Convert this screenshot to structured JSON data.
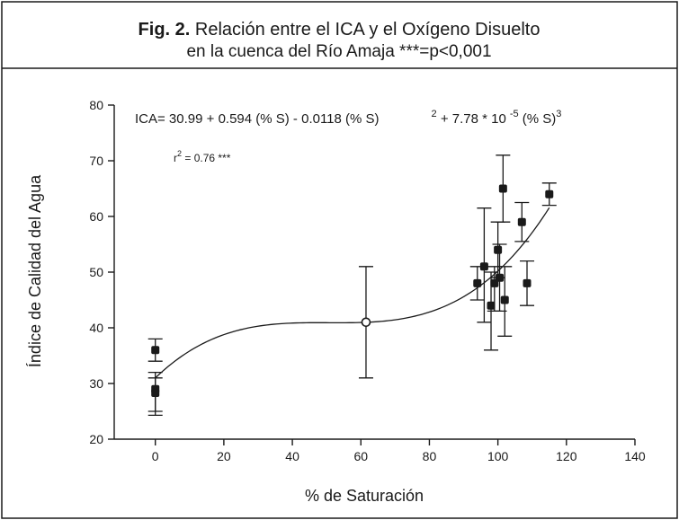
{
  "caption": {
    "fig_label": "Fig. 2.",
    "line1": "Relación entre el ICA y el Oxígeno Disuelto",
    "line2": "en la cuenca del Río Amaja ***=p<0,001"
  },
  "equation": {
    "part1": "ICA= 30.99 + 0.594 (% S) - 0.0118 (% S)",
    "exp1": "2",
    "part2": " + 7.78 * 10",
    "exp2": "-5",
    "part3": " (% S)",
    "exp3": "3"
  },
  "r2": {
    "label": "r",
    "exp": "2",
    "value": " = 0.76 ***"
  },
  "chart_data": {
    "type": "scatter",
    "xlabel": "% de Saturación",
    "ylabel": "Índice de Calidad del Agua",
    "xlim": [
      -12,
      140
    ],
    "ylim": [
      20,
      80
    ],
    "xticks": [
      0,
      20,
      40,
      60,
      80,
      100,
      120,
      140
    ],
    "yticks": [
      20,
      30,
      40,
      50,
      60,
      70,
      80
    ],
    "grid": false,
    "points": [
      {
        "x": 0,
        "y": 36,
        "lo": 34,
        "hi": 38,
        "marker": "filled"
      },
      {
        "x": 0,
        "y": 29,
        "lo": 25,
        "hi": 32,
        "marker": "filled"
      },
      {
        "x": 0,
        "y": 28.3,
        "lo": 24.3,
        "hi": 31,
        "marker": "filled"
      },
      {
        "x": 61.5,
        "y": 41,
        "lo": 31,
        "hi": 51,
        "marker": "open"
      },
      {
        "x": 94,
        "y": 48,
        "lo": 45,
        "hi": 51,
        "marker": "filled"
      },
      {
        "x": 96,
        "y": 51,
        "lo": 41,
        "hi": 61.5,
        "marker": "filled"
      },
      {
        "x": 98,
        "y": 44,
        "lo": 36,
        "hi": 50,
        "marker": "filled"
      },
      {
        "x": 99,
        "y": 48,
        "lo": 43,
        "hi": 51,
        "marker": "filled"
      },
      {
        "x": 100,
        "y": 54,
        "lo": 49,
        "hi": 59,
        "marker": "filled"
      },
      {
        "x": 100.5,
        "y": 49,
        "lo": 43,
        "hi": 55,
        "marker": "filled"
      },
      {
        "x": 101.5,
        "y": 65,
        "lo": 59,
        "hi": 71,
        "marker": "filled"
      },
      {
        "x": 102,
        "y": 45,
        "lo": 38.5,
        "hi": 51,
        "marker": "filled"
      },
      {
        "x": 107,
        "y": 59,
        "lo": 55.5,
        "hi": 62.5,
        "marker": "filled"
      },
      {
        "x": 108.5,
        "y": 48,
        "lo": 44,
        "hi": 52,
        "marker": "filled"
      },
      {
        "x": 115,
        "y": 64,
        "lo": 62,
        "hi": 66,
        "marker": "filled"
      }
    ],
    "fit": {
      "coefficients": [
        30.99,
        0.594,
        -0.0118,
        7.78e-05
      ],
      "x_range": [
        0,
        115
      ]
    }
  }
}
